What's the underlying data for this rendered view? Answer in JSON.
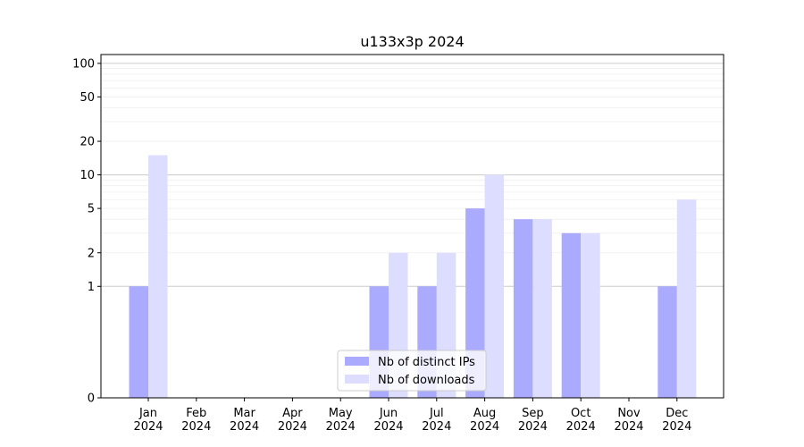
{
  "chart_data": {
    "type": "bar",
    "title": "u133x3p 2024",
    "xlabel": "",
    "ylabel": "",
    "y_scale": "symlog",
    "ylim": [
      0,
      120
    ],
    "yticks": [
      0,
      1,
      2,
      5,
      10,
      20,
      50,
      100
    ],
    "grid": "horizontal",
    "legend_placement": "bottom-center",
    "categories": [
      [
        "Jan",
        "2024"
      ],
      [
        "Feb",
        "2024"
      ],
      [
        "Mar",
        "2024"
      ],
      [
        "Apr",
        "2024"
      ],
      [
        "May",
        "2024"
      ],
      [
        "Jun",
        "2024"
      ],
      [
        "Jul",
        "2024"
      ],
      [
        "Aug",
        "2024"
      ],
      [
        "Sep",
        "2024"
      ],
      [
        "Oct",
        "2024"
      ],
      [
        "Nov",
        "2024"
      ],
      [
        "Dec",
        "2024"
      ]
    ],
    "series": [
      {
        "name": "Nb of distinct IPs",
        "color": "#aaaaff",
        "values": [
          1,
          0,
          0,
          0,
          0,
          1,
          1,
          5,
          4,
          3,
          0,
          1
        ]
      },
      {
        "name": "Nb of downloads",
        "color": "#ddddff",
        "values": [
          15,
          0,
          0,
          0,
          0,
          2,
          2,
          10,
          4,
          3,
          0,
          6
        ]
      }
    ]
  }
}
